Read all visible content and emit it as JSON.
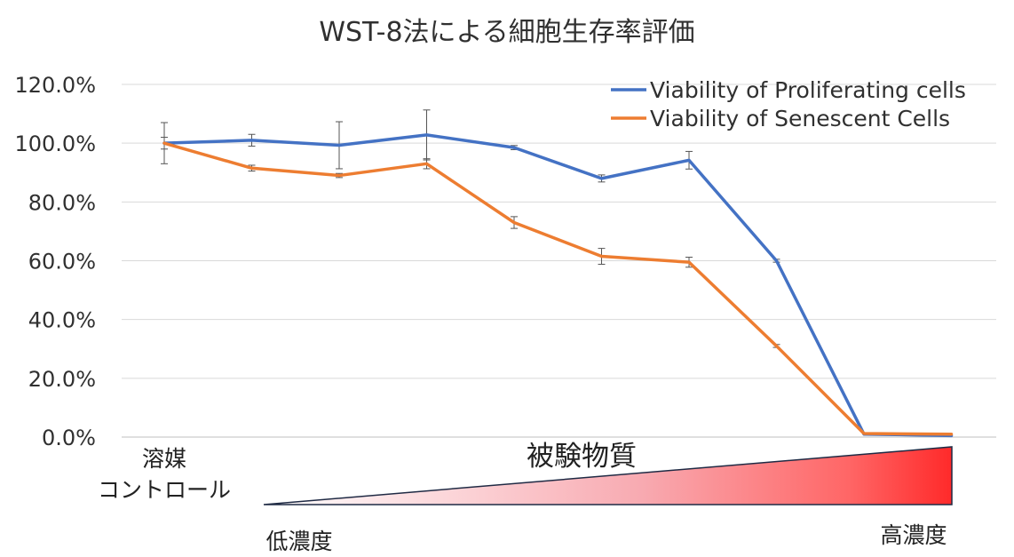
{
  "chart_data": {
    "type": "line",
    "title": "WST-8法による細胞生存率評価",
    "xlabel": "",
    "ylabel": "",
    "ylim": [
      0,
      1.2
    ],
    "yticks": [
      "0.0%",
      "20.0%",
      "40.0%",
      "60.0%",
      "80.0%",
      "100.0%",
      "120.0%"
    ],
    "x": [
      1,
      2,
      3,
      4,
      5,
      6,
      7,
      8,
      9,
      10
    ],
    "grid": true,
    "legend_position": "top-right",
    "series": [
      {
        "name": "Viability of Proliferating cells",
        "color": "#4472c4",
        "values": [
          1.0,
          1.01,
          0.993,
          1.028,
          0.985,
          0.88,
          0.942,
          0.6,
          0.01,
          0.005
        ],
        "errors": [
          0.07,
          0.02,
          0.08,
          0.085,
          0.007,
          0.012,
          0.03,
          0.005,
          0.0,
          0.0
        ]
      },
      {
        "name": "Viability of Senescent Cells",
        "color": "#ed7d31",
        "values": [
          1.0,
          0.915,
          0.89,
          0.93,
          0.73,
          0.615,
          0.595,
          0.31,
          0.012,
          0.01
        ],
        "errors": [
          0.02,
          0.01,
          0.007,
          0.017,
          0.02,
          0.027,
          0.017,
          0.005,
          0.0,
          0.0
        ]
      }
    ]
  },
  "annotations": {
    "control_line1": "溶媒",
    "control_line2": "コントロール",
    "substance": "被験物質",
    "low": "低濃度",
    "high": "高濃度"
  }
}
